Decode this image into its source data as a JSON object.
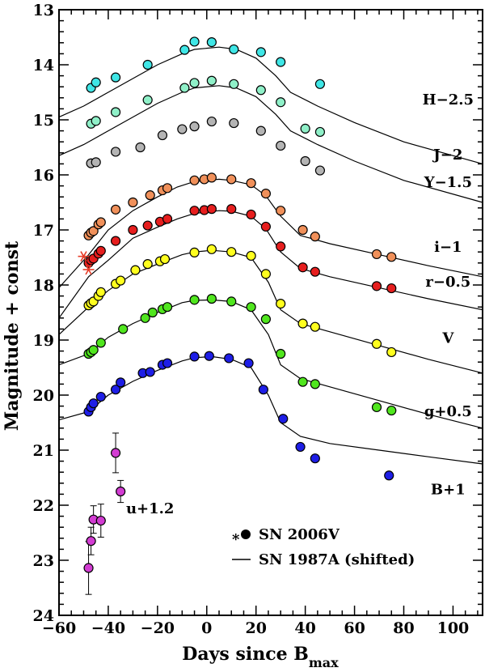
{
  "chart_data": {
    "type": "scatter",
    "xlabel": "Days since B",
    "xlabel_sub": "max",
    "ylabel": "Magnitude + const",
    "xlim": [
      -60,
      112
    ],
    "ylim": [
      24,
      13
    ],
    "x_ticks": [
      -60,
      -40,
      -20,
      0,
      20,
      40,
      60,
      80,
      100
    ],
    "y_ticks": [
      13,
      14,
      15,
      16,
      17,
      18,
      19,
      20,
      21,
      22,
      23,
      24
    ],
    "colors": {
      "H": "#3fe6e6",
      "J": "#8ff0c8",
      "Y": "#b4b4b4",
      "i": "#f0905a",
      "r": "#e61e1e",
      "V": "#ffff1e",
      "g": "#50e61e",
      "B": "#1e1ee6",
      "u": "#d23cd2",
      "asterisk": "#e63c28"
    },
    "series": [
      {
        "name": "H−2.5",
        "key": "H",
        "x": [
          -47,
          -45,
          -37,
          -24,
          -9,
          -5,
          2,
          11,
          22,
          30,
          46
        ],
        "y": [
          14.42,
          14.32,
          14.23,
          14.0,
          13.73,
          13.58,
          13.59,
          13.72,
          13.77,
          13.95,
          14.35
        ]
      },
      {
        "name": "J−2",
        "key": "J",
        "x": [
          -47,
          -45,
          -37,
          -24,
          -9,
          -5,
          2,
          11,
          22,
          30,
          40,
          46
        ],
        "y": [
          15.07,
          15.02,
          14.86,
          14.64,
          14.42,
          14.33,
          14.29,
          14.35,
          14.46,
          14.68,
          15.16,
          15.22
        ]
      },
      {
        "name": "Y−1.5",
        "key": "Y",
        "x": [
          -47,
          -45,
          -37,
          -27,
          -18,
          -10,
          -5,
          2,
          11,
          22,
          30,
          40,
          46
        ],
        "y": [
          15.79,
          15.77,
          15.58,
          15.5,
          15.28,
          15.17,
          15.12,
          15.03,
          15.06,
          15.2,
          15.47,
          15.75,
          15.92
        ]
      },
      {
        "name": "i−1",
        "key": "i",
        "x": [
          -48,
          -47,
          -46,
          -44,
          -43,
          -37,
          -30,
          -23,
          -18,
          -16,
          -5,
          -1,
          2,
          10,
          18,
          24,
          30,
          39,
          44,
          69,
          75
        ],
        "y": [
          17.1,
          17.05,
          17.02,
          16.9,
          16.86,
          16.63,
          16.5,
          16.37,
          16.28,
          16.24,
          16.1,
          16.08,
          16.05,
          16.08,
          16.15,
          16.34,
          16.65,
          17.0,
          17.12,
          17.44,
          17.49
        ]
      },
      {
        "name": "r−0.5",
        "key": "r",
        "x": [
          -48,
          -47,
          -46,
          -44,
          -43,
          -37,
          -30,
          -24,
          -19,
          -16,
          -5,
          -1,
          2,
          10,
          18,
          24,
          30,
          39,
          44,
          69,
          75
        ],
        "y": [
          17.6,
          17.55,
          17.52,
          17.43,
          17.38,
          17.2,
          17.0,
          16.92,
          16.85,
          16.8,
          16.65,
          16.64,
          16.62,
          16.62,
          16.72,
          16.94,
          17.3,
          17.68,
          17.76,
          18.02,
          18.06
        ]
      },
      {
        "name": "V",
        "key": "V",
        "x": [
          -48,
          -47,
          -46,
          -44,
          -43,
          -37,
          -35,
          -29,
          -24,
          -19,
          -17,
          -5,
          2,
          10,
          18,
          24,
          30,
          39,
          44,
          69,
          75
        ],
        "y": [
          18.37,
          18.33,
          18.3,
          18.2,
          18.13,
          17.98,
          17.92,
          17.73,
          17.62,
          17.57,
          17.53,
          17.41,
          17.35,
          17.4,
          17.47,
          17.8,
          18.34,
          18.7,
          18.76,
          19.07,
          19.22
        ]
      },
      {
        "name": "g+0.5",
        "key": "g",
        "x": [
          -48,
          -47,
          -46,
          -43,
          -34,
          -25,
          -22,
          -18,
          -16,
          -5,
          2,
          10,
          18,
          24,
          30,
          39,
          44,
          69,
          75
        ],
        "y": [
          19.25,
          19.22,
          19.18,
          19.05,
          18.8,
          18.6,
          18.5,
          18.44,
          18.4,
          18.27,
          18.25,
          18.3,
          18.4,
          18.62,
          19.25,
          19.76,
          19.8,
          20.22,
          20.28
        ]
      },
      {
        "name": "B+1",
        "key": "B",
        "x": [
          -48,
          -47,
          -46,
          -43,
          -37,
          -35,
          -26,
          -23,
          -18,
          -16,
          -5,
          1,
          9,
          17,
          23,
          31,
          38,
          44,
          74
        ],
        "y": [
          20.3,
          20.22,
          20.15,
          20.03,
          19.9,
          19.77,
          19.6,
          19.58,
          19.45,
          19.42,
          19.3,
          19.29,
          19.33,
          19.42,
          19.9,
          20.43,
          20.94,
          21.15,
          21.46
        ]
      },
      {
        "name": "u+1.2",
        "key": "u",
        "x": [
          -48,
          -47,
          -46,
          -43,
          -37,
          -35
        ],
        "y": [
          23.14,
          22.65,
          22.26,
          22.28,
          21.05,
          21.75
        ],
        "err": [
          0.48,
          0.25,
          0.25,
          0.3,
          0.36,
          0.2
        ]
      }
    ],
    "band_labels": [
      {
        "text": "H−2.5",
        "x": 98,
        "y": 14.72
      },
      {
        "text": "J−2",
        "x": 98,
        "y": 15.72
      },
      {
        "text": "Y−1.5",
        "x": 98,
        "y": 16.22
      },
      {
        "text": "i−1",
        "x": 98,
        "y": 17.4
      },
      {
        "text": "r−0.5",
        "x": 98,
        "y": 18.03
      },
      {
        "text": "V",
        "x": 98,
        "y": 19.05
      },
      {
        "text": "g+0.5",
        "x": 98,
        "y": 20.38
      },
      {
        "text": "B+1",
        "x": 98,
        "y": 21.8
      },
      {
        "text": "u+1.2",
        "x": -23,
        "y": 22.15
      }
    ],
    "asterisk_points": [
      {
        "x": -50,
        "y": 17.48
      },
      {
        "x": -48,
        "y": 17.72
      }
    ],
    "model_curves": [
      {
        "x": [
          -60,
          -50,
          -40,
          -30,
          -20,
          -10,
          -5,
          5,
          12,
          20,
          28,
          34,
          45,
          60,
          80,
          112
        ],
        "y": [
          14.95,
          14.75,
          14.5,
          14.25,
          14.0,
          13.8,
          13.72,
          13.68,
          13.72,
          13.88,
          14.2,
          14.5,
          14.75,
          15.05,
          15.4,
          15.8
        ]
      },
      {
        "x": [
          -60,
          -50,
          -40,
          -30,
          -20,
          -10,
          -5,
          5,
          12,
          20,
          28,
          34,
          45,
          60,
          80,
          112
        ],
        "y": [
          15.65,
          15.45,
          15.2,
          14.95,
          14.7,
          14.5,
          14.42,
          14.38,
          14.42,
          14.58,
          14.9,
          15.2,
          15.45,
          15.75,
          16.1,
          16.5
        ]
      },
      {
        "x": [
          -60,
          -48,
          -40,
          -30,
          -20,
          -12,
          -5,
          5,
          10,
          18,
          24,
          30,
          38,
          50,
          70,
          90,
          112
        ],
        "y": [
          18.05,
          17.45,
          17.0,
          16.65,
          16.4,
          16.22,
          16.12,
          16.08,
          16.1,
          16.18,
          16.38,
          16.75,
          17.1,
          17.25,
          17.45,
          17.65,
          17.85
        ]
      },
      {
        "x": [
          -60,
          -48,
          -40,
          -30,
          -20,
          -12,
          -5,
          5,
          10,
          18,
          24,
          30,
          38,
          50,
          70,
          90,
          112
        ],
        "y": [
          18.6,
          17.85,
          17.55,
          17.15,
          16.95,
          16.8,
          16.7,
          16.65,
          16.66,
          16.75,
          16.98,
          17.4,
          17.7,
          17.85,
          18.05,
          18.25,
          18.45
        ]
      },
      {
        "x": [
          -60,
          -48,
          -40,
          -30,
          -20,
          -10,
          -5,
          2,
          10,
          18,
          25,
          30,
          38,
          50,
          70,
          90,
          112
        ],
        "y": [
          18.9,
          18.4,
          18.1,
          17.8,
          17.62,
          17.45,
          17.4,
          17.37,
          17.4,
          17.5,
          17.95,
          18.45,
          18.7,
          18.85,
          19.1,
          19.35,
          19.6
        ]
      },
      {
        "x": [
          -60,
          -48,
          -40,
          -30,
          -20,
          -10,
          -5,
          2,
          10,
          18,
          25,
          30,
          38,
          50,
          70,
          90,
          112
        ],
        "y": [
          19.45,
          19.25,
          18.95,
          18.7,
          18.5,
          18.32,
          18.28,
          18.27,
          18.3,
          18.45,
          18.9,
          19.45,
          19.7,
          19.85,
          20.1,
          20.35,
          20.6
        ]
      },
      {
        "x": [
          -60,
          -48,
          -40,
          -30,
          -20,
          -10,
          -5,
          2,
          10,
          18,
          25,
          30,
          38,
          50,
          70,
          90,
          112
        ],
        "y": [
          20.45,
          20.3,
          20.0,
          19.75,
          19.55,
          19.38,
          19.32,
          19.3,
          19.35,
          19.5,
          20.0,
          20.5,
          20.75,
          20.88,
          21.0,
          21.12,
          21.25
        ]
      }
    ],
    "legend": [
      {
        "marker": "*●",
        "text": "SN 2006V"
      },
      {
        "marker": "line",
        "text": "SN 1987A (shifted)"
      }
    ]
  }
}
